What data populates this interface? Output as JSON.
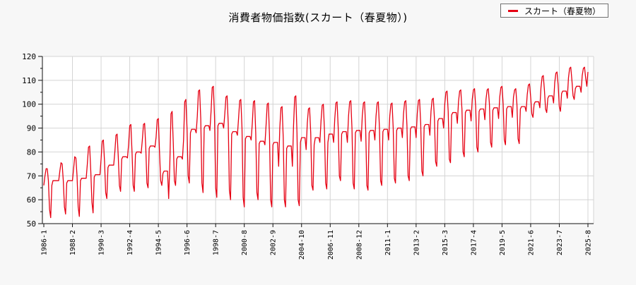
{
  "title": "消費者物価指数(スカート（春夏物）)",
  "legend": {
    "label": "スカート（春夏物）",
    "line_color": "#e60012",
    "position": "top-right"
  },
  "colors": {
    "page_bg": "#f7f7f7",
    "plot_bg": "#ffffff",
    "grid": "#d4d4d4",
    "axis": "#111111",
    "tick_text": "#000000",
    "series": "#e60012"
  },
  "chart_data": {
    "type": "line",
    "series_name": "スカート（春夏物）",
    "x_start": "1986-1",
    "x_end": "2025-8",
    "x_tick_interval_months": 25,
    "x_tick_labels": [
      "1986-1",
      "1988-2",
      "1990-3",
      "1992-4",
      "1994-5",
      "1996-6",
      "1998-7",
      "2000-8",
      "2002-9",
      "2004-10",
      "2006-11",
      "2008-12",
      "2011-1",
      "2013-2",
      "2015-3",
      "2017-4",
      "2019-5",
      "2021-6",
      "2023-7",
      "2025-8"
    ],
    "y_ticks": [
      50,
      60,
      70,
      80,
      90,
      100,
      110,
      120
    ],
    "y_minor_tick_step": 5,
    "ylim": [
      50,
      120
    ],
    "grid": true,
    "legend_position": "top-right",
    "monthly_values_by_year": [
      {
        "year": 1986,
        "values": [
          66,
          70,
          73,
          73,
          68,
          56,
          52.5,
          66,
          68,
          68,
          68,
          68
        ]
      },
      {
        "year": 1987,
        "values": [
          68,
          68,
          72,
          75.5,
          75,
          68,
          57,
          54,
          67,
          68,
          68,
          68
        ]
      },
      {
        "year": 1988,
        "values": [
          68,
          68,
          73,
          78,
          77.5,
          70,
          57,
          53,
          68,
          69,
          69,
          69
        ]
      },
      {
        "year": 1989,
        "values": [
          69,
          69,
          75,
          82,
          82.5,
          72,
          59,
          54.5,
          69.5,
          70.5,
          70.5,
          70.5
        ]
      },
      {
        "year": 1990,
        "values": [
          70.5,
          70.5,
          77,
          84.5,
          85,
          76,
          63,
          60.5,
          73.5,
          74.5,
          74.5,
          74.5
        ]
      },
      {
        "year": 1991,
        "values": [
          74.5,
          74.5,
          80,
          87,
          87.5,
          78,
          66,
          63.5,
          77,
          78,
          78,
          78
        ]
      },
      {
        "year": 1992,
        "values": [
          78,
          77.5,
          83,
          91,
          91.5,
          80,
          66,
          63.5,
          79,
          80,
          80,
          80
        ]
      },
      {
        "year": 1993,
        "values": [
          80,
          79.5,
          85,
          91.5,
          92,
          82,
          67,
          65,
          81.5,
          82.5,
          82.5,
          82.5
        ]
      },
      {
        "year": 1994,
        "values": [
          82.5,
          82,
          86,
          93.5,
          94,
          80,
          68,
          66,
          71,
          72,
          72,
          72
        ]
      },
      {
        "year": 1995,
        "values": [
          72,
          60.5,
          75,
          96,
          97,
          84,
          68,
          66,
          77,
          78,
          78,
          78
        ]
      },
      {
        "year": 1996,
        "values": [
          78,
          77,
          85,
          101,
          102,
          90,
          70,
          67,
          88,
          89.5,
          89.5,
          89.5
        ]
      },
      {
        "year": 1997,
        "values": [
          89.5,
          88,
          95,
          105.5,
          106,
          94,
          67,
          63,
          90,
          91,
          91,
          91
        ]
      },
      {
        "year": 1998,
        "values": [
          91,
          89,
          97,
          107,
          107.5,
          95,
          65,
          61,
          91,
          92,
          92,
          92
        ]
      },
      {
        "year": 1999,
        "values": [
          92,
          90,
          96,
          103,
          103.5,
          92,
          64,
          60,
          87.5,
          88.5,
          88.5,
          88.5
        ]
      },
      {
        "year": 2000,
        "values": [
          88.5,
          87,
          94,
          101.5,
          102,
          90,
          61,
          57,
          85.5,
          86.5,
          86.5,
          86.5
        ]
      },
      {
        "year": 2001,
        "values": [
          86.5,
          85,
          92,
          101,
          101.5,
          88,
          63,
          60,
          83.5,
          84.5,
          84.5,
          84.5
        ]
      },
      {
        "year": 2002,
        "values": [
          84.5,
          83,
          91,
          100,
          100.5,
          87,
          60,
          57,
          83,
          84,
          84,
          84
        ]
      },
      {
        "year": 2003,
        "values": [
          84,
          74,
          90,
          98.5,
          99,
          86,
          60,
          57,
          81.5,
          82.5,
          82.5,
          82.5
        ]
      },
      {
        "year": 2004,
        "values": [
          82.5,
          74,
          91,
          103,
          103.5,
          88,
          60,
          57.5,
          84,
          86,
          86,
          86
        ]
      },
      {
        "year": 2005,
        "values": [
          86,
          81,
          92,
          98,
          98.5,
          88,
          66,
          64,
          83,
          86,
          86,
          86
        ]
      },
      {
        "year": 2006,
        "values": [
          86,
          84,
          93,
          99.5,
          100,
          89,
          67,
          64.5,
          84,
          87.5,
          87.5,
          87.5
        ]
      },
      {
        "year": 2007,
        "values": [
          87.5,
          84,
          94,
          100.5,
          101,
          90,
          70,
          68,
          87.5,
          88.5,
          88.5,
          88.5
        ]
      },
      {
        "year": 2008,
        "values": [
          88.5,
          84,
          95,
          101,
          101.5,
          90,
          67,
          64.5,
          88,
          89,
          89,
          89
        ]
      },
      {
        "year": 2009,
        "values": [
          89,
          84.5,
          95,
          100.5,
          101,
          89,
          66,
          64,
          88,
          89,
          89,
          89
        ]
      },
      {
        "year": 2010,
        "values": [
          89,
          85,
          95,
          100.5,
          101,
          90,
          68,
          66,
          88.5,
          89.5,
          89.5,
          89.5
        ]
      },
      {
        "year": 2011,
        "values": [
          89.5,
          85,
          95,
          100,
          100.5,
          90,
          69,
          67,
          89,
          90,
          90,
          90
        ]
      },
      {
        "year": 2012,
        "values": [
          90,
          86,
          96,
          101,
          101.5,
          91,
          70,
          68,
          89.5,
          90.5,
          90.5,
          90.5
        ]
      },
      {
        "year": 2013,
        "values": [
          90.5,
          86,
          96,
          101.5,
          102,
          92,
          72,
          70,
          90.5,
          91.5,
          91.5,
          91.5
        ]
      },
      {
        "year": 2014,
        "values": [
          91.5,
          87,
          97,
          102,
          102.5,
          94,
          76,
          74,
          93,
          94,
          94,
          94
        ]
      },
      {
        "year": 2015,
        "values": [
          94,
          90,
          100,
          105,
          105.5,
          97,
          77,
          75.5,
          95.5,
          96.5,
          96.5,
          96.5
        ]
      },
      {
        "year": 2016,
        "values": [
          96.5,
          92,
          101,
          105.5,
          106,
          98,
          80,
          78,
          96.5,
          97.5,
          97.5,
          97.5
        ]
      },
      {
        "year": 2017,
        "values": [
          97.5,
          93,
          102,
          106,
          106.5,
          99,
          82,
          80,
          97,
          98,
          98,
          98
        ]
      },
      {
        "year": 2018,
        "values": [
          98,
          93.5,
          102,
          106,
          106.5,
          100,
          84,
          82,
          97.5,
          98.5,
          98.5,
          98.5
        ]
      },
      {
        "year": 2019,
        "values": [
          98.5,
          94,
          103,
          107,
          107.5,
          100,
          85,
          83,
          98,
          99,
          99,
          99
        ]
      },
      {
        "year": 2020,
        "values": [
          99,
          94.5,
          103,
          106,
          106.5,
          100,
          85.5,
          83.5,
          98,
          99,
          99,
          99
        ]
      },
      {
        "year": 2021,
        "values": [
          99,
          97,
          104,
          108,
          108.5,
          103,
          96,
          94.5,
          100,
          101,
          101,
          101
        ]
      },
      {
        "year": 2022,
        "values": [
          101,
          98.5,
          107,
          111.5,
          112,
          106,
          98,
          96.5,
          102.5,
          103.5,
          103.5,
          103.5
        ]
      },
      {
        "year": 2023,
        "values": [
          103.5,
          100.5,
          109,
          113,
          113.5,
          108,
          99,
          97,
          104.5,
          105.5,
          105.5,
          105.5
        ]
      },
      {
        "year": 2024,
        "values": [
          105.5,
          102.5,
          111,
          115,
          115.5,
          110,
          103.5,
          102,
          106.5,
          107.5,
          107.5,
          107.5
        ]
      },
      {
        "year": 2025,
        "values": [
          107.5,
          105,
          112,
          115,
          115.5,
          111,
          107.5,
          113.5
        ]
      }
    ]
  }
}
